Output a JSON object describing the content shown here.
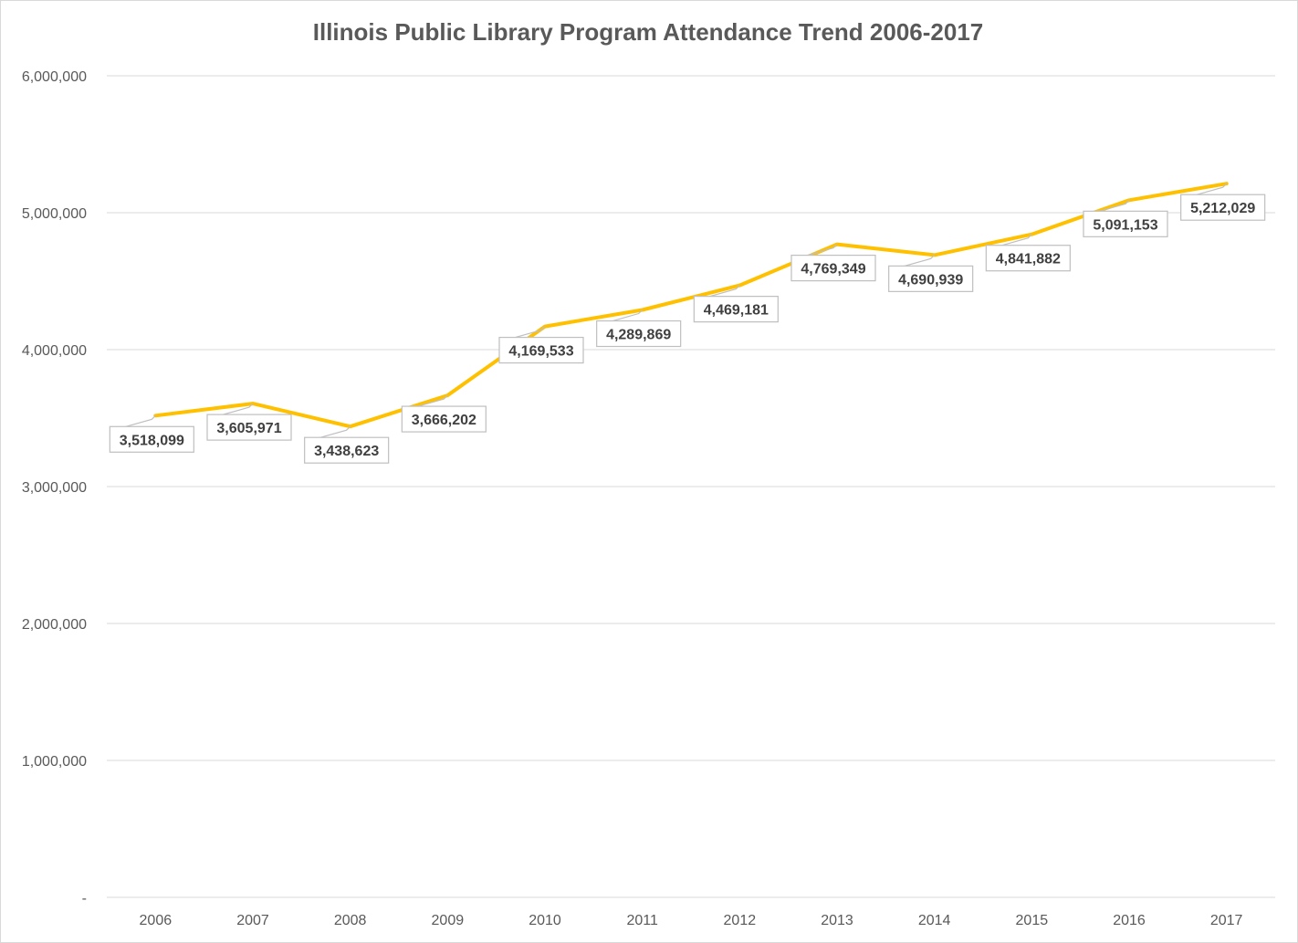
{
  "chart_data": {
    "type": "line",
    "title": "Illinois Public Library Program Attendance Trend 2006-2017",
    "xlabel": "",
    "ylabel": "",
    "categories": [
      "2006",
      "2007",
      "2008",
      "2009",
      "2010",
      "2011",
      "2012",
      "2013",
      "2014",
      "2015",
      "2016",
      "2017"
    ],
    "series": [
      {
        "values": [
          3518099,
          3605971,
          3438623,
          3666202,
          4169533,
          4289869,
          4469181,
          4769349,
          4690939,
          4841882,
          5091153,
          5212029
        ],
        "color": "#FFC000"
      }
    ],
    "data_labels": [
      "3,518,099",
      "3,605,971",
      "3,438,623",
      "3,666,202",
      "4,169,533",
      "4,289,869",
      "4,469,181",
      "4,769,349",
      "4,690,939",
      "4,841,882",
      "5,091,153",
      "5,212,029"
    ],
    "ylim": [
      0,
      6000000
    ],
    "y_ticks": [
      0,
      1000000,
      2000000,
      3000000,
      4000000,
      5000000,
      6000000
    ],
    "y_tick_labels": [
      "-",
      "1,000,000",
      "2,000,000",
      "3,000,000",
      "4,000,000",
      "5,000,000",
      "6,000,000"
    ],
    "grid": true,
    "legend": "none",
    "colors": {
      "line": "#FFC000",
      "grid": "#d9d9d9",
      "label_border": "#bfbfbf",
      "text": "#595959"
    }
  }
}
